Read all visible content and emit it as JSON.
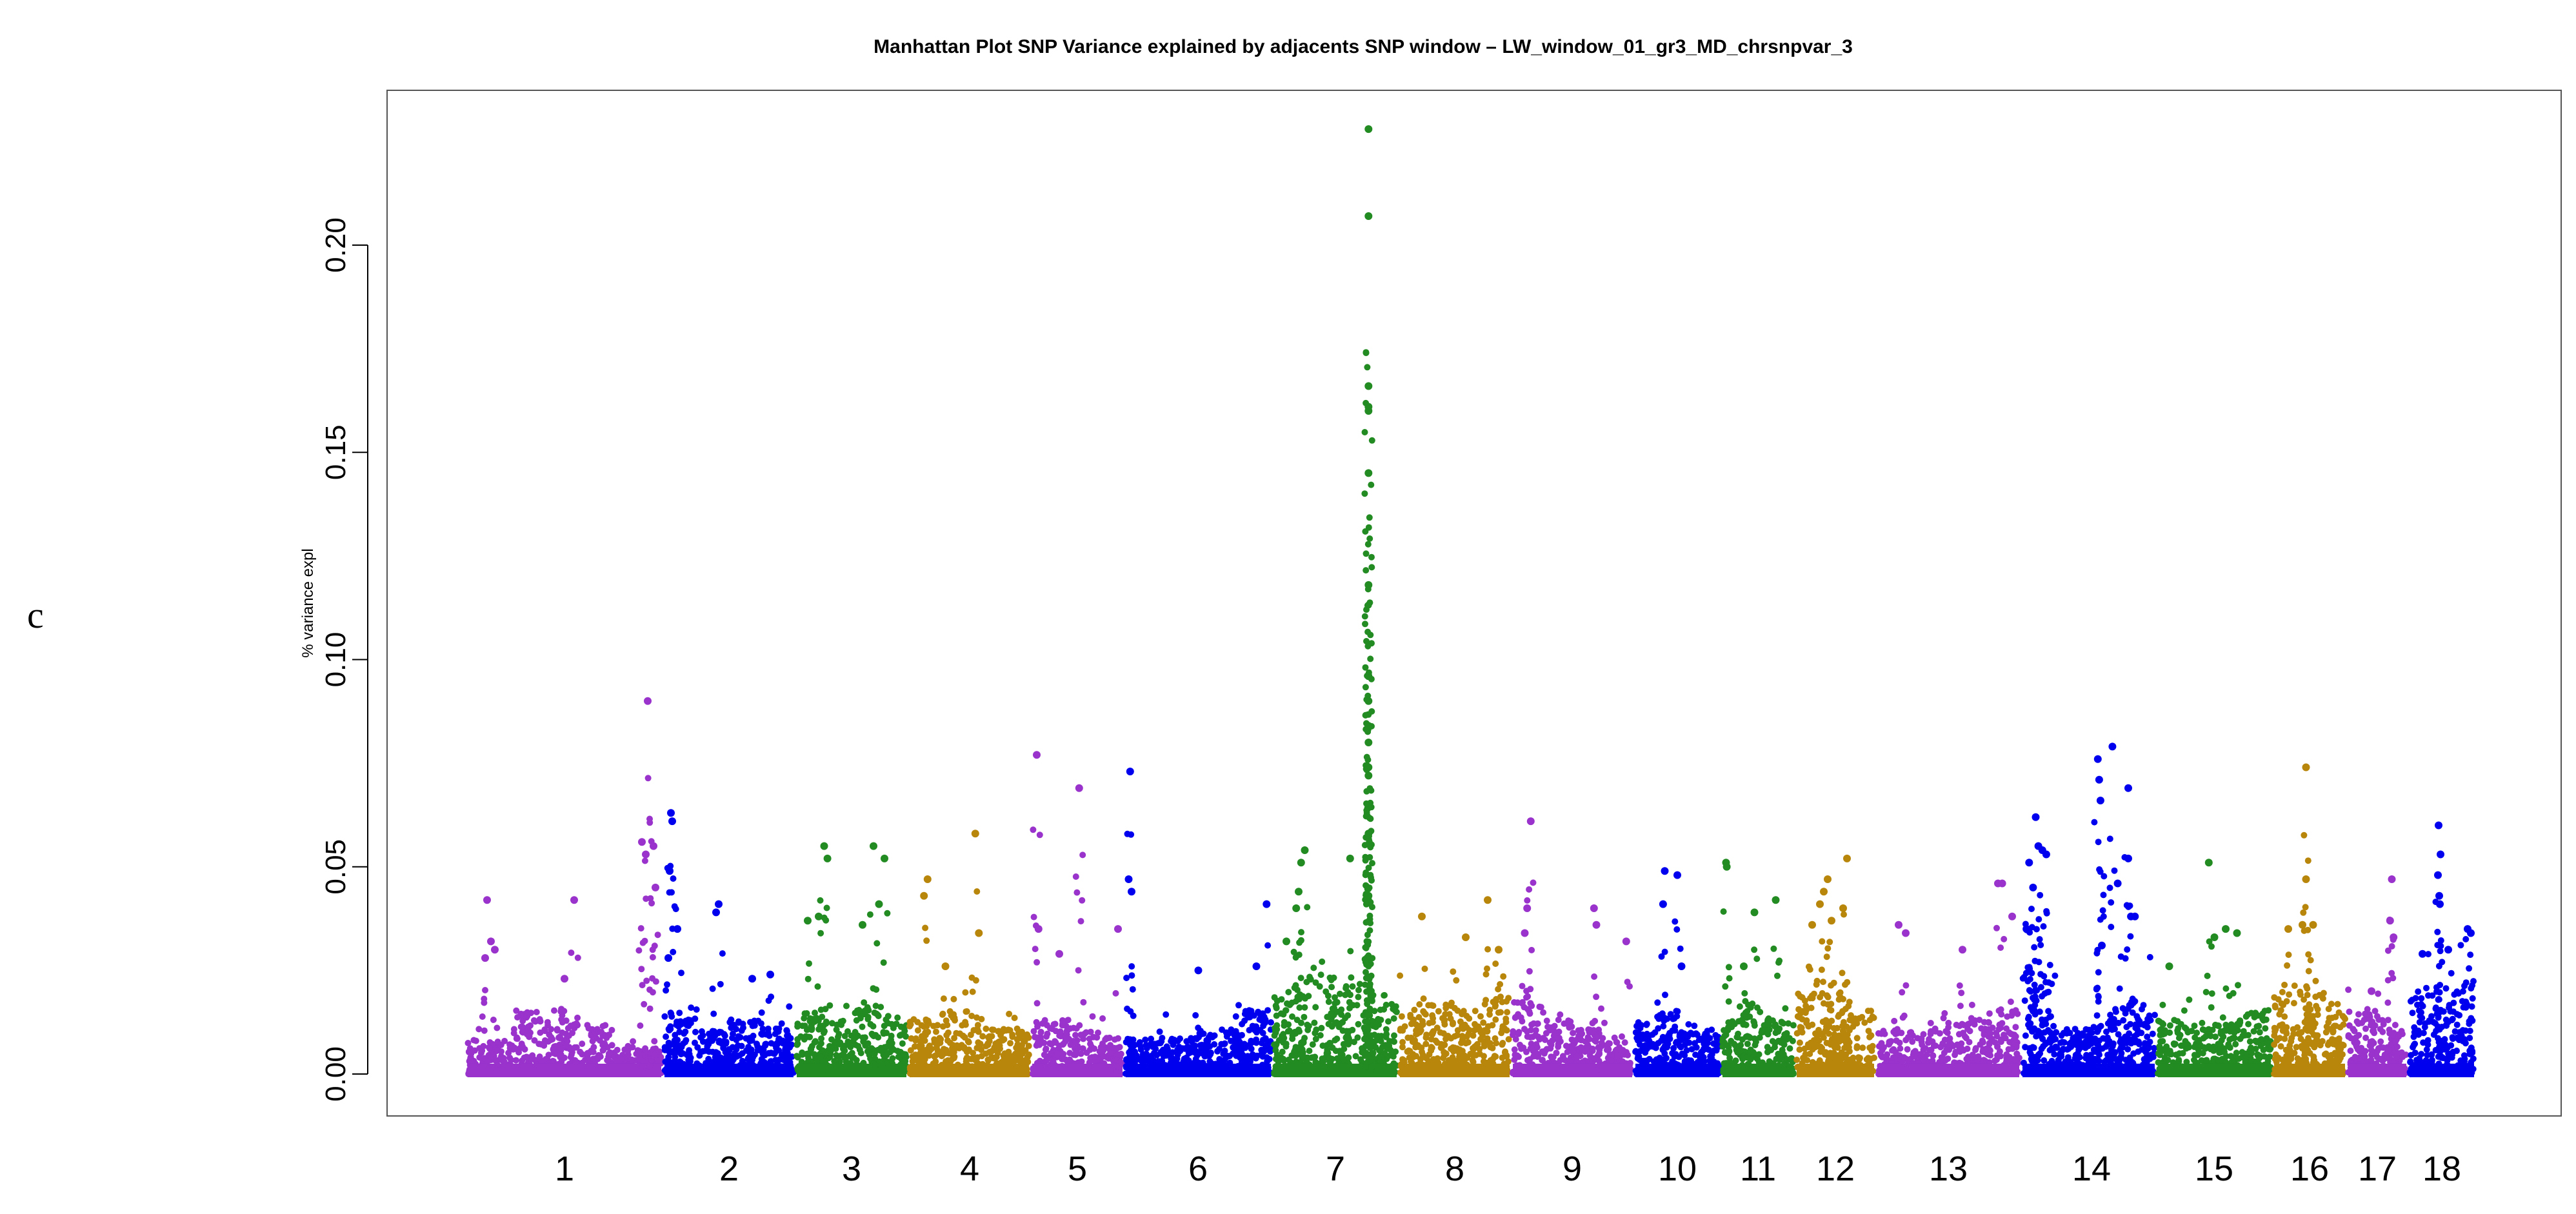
{
  "panel_label": "c",
  "chart_data": {
    "type": "scatter",
    "title": "Manhattan Plot SNP Variance explained by adjacents SNP window – LW_window_01_gr3_MD_chrsnpvar_3",
    "xlabel": "",
    "ylabel": "% variance expl",
    "ylim": [
      0,
      0.235
    ],
    "yticks": [
      0.0,
      0.05,
      0.1,
      0.15,
      0.2
    ],
    "ytick_labels": [
      "0.00",
      "0.05",
      "0.10",
      "0.15",
      "0.20"
    ],
    "grid": false,
    "legend": "none",
    "x_units": "chromosome index (position within chromosome scaled 0-1)",
    "series_colors": [
      "#9933cc",
      "#0000ee",
      "#228b22",
      "#b8860b"
    ],
    "chromosomes": [
      {
        "label": "1",
        "color": "#9933cc",
        "bg": [
          0.004,
          0.007,
          0.006,
          0.003
        ],
        "peaks": [
          [
            0.1,
            0.042
          ],
          [
            0.12,
            0.032
          ],
          [
            0.14,
            0.03
          ],
          [
            0.09,
            0.028
          ],
          [
            0.55,
            0.042
          ],
          [
            0.5,
            0.023
          ],
          [
            0.93,
            0.09
          ],
          [
            0.9,
            0.056
          ],
          [
            0.92,
            0.053
          ],
          [
            0.96,
            0.055
          ],
          [
            0.97,
            0.045
          ]
        ]
      },
      {
        "label": "2",
        "color": "#0000ee",
        "bg": [
          0.006,
          0.005,
          0.006,
          0.005
        ],
        "peaks": [
          [
            0.05,
            0.063
          ],
          [
            0.06,
            0.061
          ],
          [
            0.04,
            0.049
          ],
          [
            0.1,
            0.035
          ],
          [
            0.03,
            0.028
          ],
          [
            0.42,
            0.041
          ],
          [
            0.4,
            0.039
          ],
          [
            0.68,
            0.023
          ],
          [
            0.82,
            0.024
          ]
        ]
      },
      {
        "label": "3",
        "color": "#228b22",
        "bg": [
          0.007,
          0.006,
          0.008,
          0.006
        ],
        "peaks": [
          [
            0.25,
            0.055
          ],
          [
            0.28,
            0.052
          ],
          [
            0.7,
            0.055
          ],
          [
            0.8,
            0.052
          ],
          [
            0.75,
            0.041
          ],
          [
            0.6,
            0.036
          ],
          [
            0.1,
            0.037
          ],
          [
            0.2,
            0.038
          ]
        ]
      },
      {
        "label": "4",
        "color": "#b8860b",
        "bg": [
          0.006,
          0.007,
          0.005,
          0.005
        ],
        "peaks": [
          [
            0.15,
            0.047
          ],
          [
            0.12,
            0.043
          ],
          [
            0.55,
            0.058
          ],
          [
            0.58,
            0.034
          ],
          [
            0.3,
            0.026
          ]
        ]
      },
      {
        "label": "5",
        "color": "#9933cc",
        "bg": [
          0.006,
          0.006,
          0.005,
          0.004
        ],
        "peaks": [
          [
            0.05,
            0.077
          ],
          [
            0.52,
            0.069
          ],
          [
            0.07,
            0.035
          ],
          [
            0.3,
            0.029
          ],
          [
            0.95,
            0.035
          ]
        ]
      },
      {
        "label": "6",
        "color": "#0000ee",
        "bg": [
          0.004,
          0.004,
          0.005,
          0.007
        ],
        "peaks": [
          [
            0.03,
            0.073
          ],
          [
            0.02,
            0.047
          ],
          [
            0.04,
            0.044
          ],
          [
            0.5,
            0.025
          ],
          [
            0.97,
            0.041
          ],
          [
            0.9,
            0.026
          ]
        ]
      },
      {
        "label": "7",
        "color": "#228b22",
        "bg": [
          0.009,
          0.011,
          0.01,
          0.009
        ],
        "peaks": [
          [
            0.77,
            0.228
          ],
          [
            0.77,
            0.207
          ],
          [
            0.77,
            0.166
          ],
          [
            0.77,
            0.161
          ],
          [
            0.77,
            0.16
          ],
          [
            0.77,
            0.145
          ],
          [
            0.77,
            0.118
          ],
          [
            0.77,
            0.096
          ],
          [
            0.77,
            0.09
          ],
          [
            0.77,
            0.084
          ],
          [
            0.77,
            0.08
          ],
          [
            0.77,
            0.074
          ],
          [
            0.77,
            0.072
          ],
          [
            0.77,
            0.058
          ],
          [
            0.77,
            0.043
          ],
          [
            0.25,
            0.054
          ],
          [
            0.22,
            0.051
          ],
          [
            0.2,
            0.044
          ],
          [
            0.18,
            0.04
          ],
          [
            0.62,
            0.052
          ],
          [
            0.1,
            0.032
          ]
        ]
      },
      {
        "label": "8",
        "color": "#b8860b",
        "bg": [
          0.007,
          0.008,
          0.007,
          0.009
        ],
        "peaks": [
          [
            0.2,
            0.038
          ],
          [
            0.8,
            0.042
          ],
          [
            0.6,
            0.033
          ],
          [
            0.9,
            0.03
          ]
        ]
      },
      {
        "label": "9",
        "color": "#9933cc",
        "bg": [
          0.008,
          0.006,
          0.005,
          0.004
        ],
        "peaks": [
          [
            0.15,
            0.061
          ],
          [
            0.12,
            0.04
          ],
          [
            0.1,
            0.034
          ],
          [
            0.68,
            0.04
          ],
          [
            0.7,
            0.036
          ],
          [
            0.95,
            0.032
          ]
        ]
      },
      {
        "label": "10",
        "color": "#0000ee",
        "bg": [
          0.006,
          0.007,
          0.006,
          0.005
        ],
        "peaks": [
          [
            0.35,
            0.049
          ],
          [
            0.5,
            0.048
          ],
          [
            0.33,
            0.041
          ],
          [
            0.55,
            0.026
          ]
        ]
      },
      {
        "label": "11",
        "color": "#228b22",
        "bg": [
          0.006,
          0.008,
          0.007,
          0.006
        ],
        "peaks": [
          [
            0.05,
            0.051
          ],
          [
            0.06,
            0.05
          ],
          [
            0.45,
            0.039
          ],
          [
            0.75,
            0.042
          ],
          [
            0.3,
            0.026
          ]
        ]
      },
      {
        "label": "12",
        "color": "#b8860b",
        "bg": [
          0.009,
          0.01,
          0.009,
          0.007
        ],
        "peaks": [
          [
            0.65,
            0.052
          ],
          [
            0.4,
            0.047
          ],
          [
            0.35,
            0.044
          ],
          [
            0.3,
            0.041
          ],
          [
            0.2,
            0.036
          ],
          [
            0.6,
            0.04
          ],
          [
            0.45,
            0.037
          ]
        ]
      },
      {
        "label": "13",
        "color": "#9933cc",
        "bg": [
          0.005,
          0.005,
          0.006,
          0.007
        ],
        "peaks": [
          [
            0.15,
            0.036
          ],
          [
            0.2,
            0.034
          ],
          [
            0.85,
            0.046
          ],
          [
            0.88,
            0.046
          ],
          [
            0.6,
            0.03
          ],
          [
            0.95,
            0.038
          ]
        ]
      },
      {
        "label": "14",
        "color": "#0000ee",
        "bg": [
          0.012,
          0.005,
          0.006,
          0.008
        ],
        "peaks": [
          [
            0.1,
            0.062
          ],
          [
            0.12,
            0.055
          ],
          [
            0.15,
            0.054
          ],
          [
            0.18,
            0.053
          ],
          [
            0.05,
            0.051
          ],
          [
            0.08,
            0.045
          ],
          [
            0.03,
            0.035
          ],
          [
            0.68,
            0.079
          ],
          [
            0.57,
            0.076
          ],
          [
            0.58,
            0.071
          ],
          [
            0.59,
            0.066
          ],
          [
            0.8,
            0.069
          ],
          [
            0.8,
            0.052
          ],
          [
            0.82,
            0.038
          ],
          [
            0.85,
            0.038
          ],
          [
            0.6,
            0.031
          ],
          [
            0.72,
            0.046
          ]
        ]
      },
      {
        "label": "15",
        "color": "#228b22",
        "bg": [
          0.006,
          0.005,
          0.006,
          0.007
        ],
        "peaks": [
          [
            0.45,
            0.051
          ],
          [
            0.6,
            0.035
          ],
          [
            0.7,
            0.034
          ],
          [
            0.5,
            0.033
          ],
          [
            0.1,
            0.026
          ]
        ]
      },
      {
        "label": "16",
        "color": "#b8860b",
        "bg": [
          0.009,
          0.01,
          0.009,
          0.008
        ],
        "peaks": [
          [
            0.45,
            0.074
          ],
          [
            0.45,
            0.047
          ],
          [
            0.4,
            0.036
          ],
          [
            0.55,
            0.036
          ],
          [
            0.2,
            0.035
          ]
        ]
      },
      {
        "label": "17",
        "color": "#9933cc",
        "bg": [
          0.006,
          0.007,
          0.006,
          0.005
        ],
        "peaks": [
          [
            0.75,
            0.047
          ],
          [
            0.72,
            0.037
          ],
          [
            0.78,
            0.033
          ],
          [
            0.4,
            0.02
          ]
        ]
      },
      {
        "label": "18",
        "color": "#0000ee",
        "bg": [
          0.009,
          0.01,
          0.01,
          0.011
        ],
        "peaks": [
          [
            0.45,
            0.06
          ],
          [
            0.48,
            0.053
          ],
          [
            0.44,
            0.048
          ],
          [
            0.46,
            0.043
          ],
          [
            0.47,
            0.041
          ],
          [
            0.9,
            0.035
          ],
          [
            0.95,
            0.034
          ],
          [
            0.2,
            0.029
          ],
          [
            0.6,
            0.03
          ]
        ]
      }
    ]
  }
}
